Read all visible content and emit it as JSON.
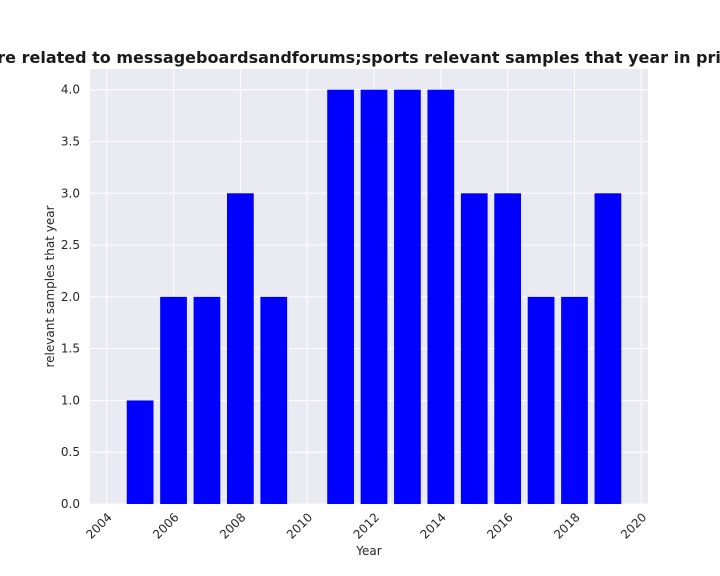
{
  "chart_data": {
    "type": "bar",
    "title": "Categories are related to messageboardsandforums;sports relevant samples that year in privacy policies",
    "xlabel": "Year",
    "ylabel": "relevant samples that year",
    "x": [
      2005,
      2006,
      2007,
      2008,
      2009,
      2011,
      2012,
      2013,
      2014,
      2015,
      2016,
      2017,
      2018,
      2019
    ],
    "values": [
      1,
      2,
      2,
      3,
      2,
      4,
      4,
      4,
      4,
      3,
      3,
      2,
      2,
      3
    ],
    "xlim": [
      2003.5,
      2020.2
    ],
    "ylim": [
      0,
      4.2
    ],
    "xticks": [
      "2004",
      "2006",
      "2008",
      "2010",
      "2012",
      "2014",
      "2016",
      "2018",
      "2020"
    ],
    "yticks": [
      "0.0",
      "0.5",
      "1.0",
      "1.5",
      "2.0",
      "2.5",
      "3.0",
      "3.5",
      "4.0"
    ],
    "bar_color": "#0000ff",
    "background": "#eaeaf2",
    "grid": true,
    "legend": "none"
  }
}
